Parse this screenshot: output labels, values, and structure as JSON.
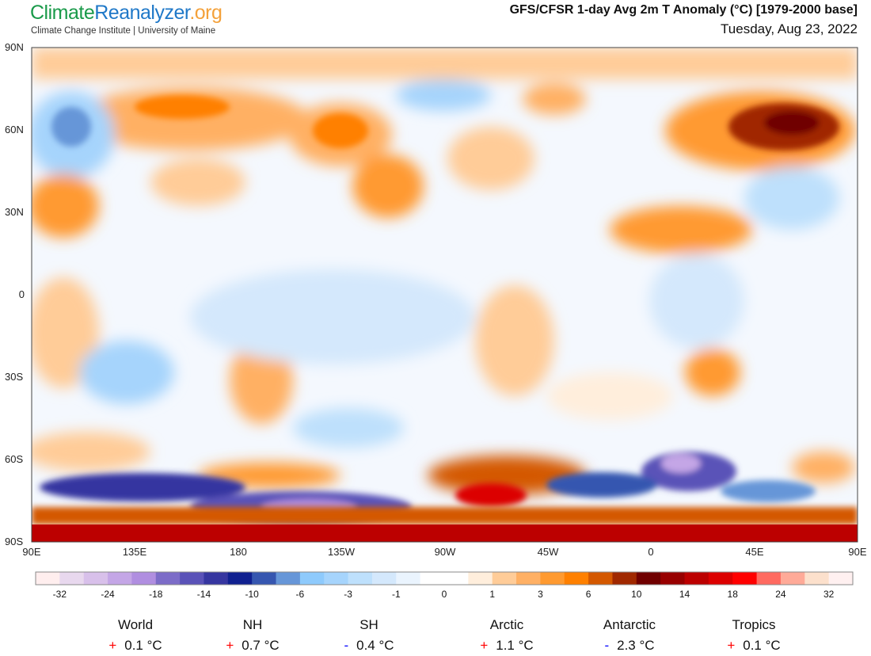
{
  "header": {
    "logo": {
      "part1": "Climate",
      "part2": "Reanalyzer",
      ".org": ".org"
    },
    "subtitle": "Climate Change Institute | University of Maine",
    "title": "GFS/CFSR 1-day Avg 2m T Anomaly (°C) [1979-2000 base]",
    "date": "Tuesday, Aug 23, 2022"
  },
  "map": {
    "lat_labels": [
      "90N",
      "60N",
      "30N",
      "0",
      "30S",
      "60S",
      "90S"
    ],
    "lon_labels": [
      "90E",
      "135E",
      "180",
      "135W",
      "90W",
      "45W",
      "0",
      "45E",
      "90E"
    ]
  },
  "colorbar": {
    "colors": [
      "#ffeeee",
      "#e8d8ee",
      "#d8c0ea",
      "#c4a6e6",
      "#b08ee0",
      "#7c6cc8",
      "#5a52b8",
      "#3636a0",
      "#102090",
      "#3656b0",
      "#6696d8",
      "#8ecafc",
      "#a6d4fc",
      "#bee0fc",
      "#d4e8fc",
      "#eaf4fe",
      "#ffffff",
      "#ffffff",
      "#ffeedc",
      "#ffcc98",
      "#ffb064",
      "#ff9a30",
      "#ff8000",
      "#d45800",
      "#a02800",
      "#700000",
      "#980000",
      "#bc0000",
      "#dc0000",
      "#ff0000",
      "#ff6a60",
      "#ffaa98",
      "#fce0cc",
      "#fff0f0"
    ],
    "labels": [
      "-32",
      "-24",
      "-18",
      "-14",
      "-10",
      "-6",
      "-3",
      "-1",
      "0",
      "1",
      "3",
      "6",
      "10",
      "14",
      "18",
      "24",
      "32"
    ]
  },
  "stats": [
    {
      "name": "World",
      "sign": "+",
      "value": "0.1 °C",
      "color": "#ff0000"
    },
    {
      "name": "NH",
      "sign": "+",
      "value": "0.7 °C",
      "color": "#ff0000"
    },
    {
      "name": "SH",
      "sign": "-",
      "value": "0.4 °C",
      "color": "#0000ff"
    },
    {
      "name": "Arctic",
      "sign": "+",
      "value": "1.1 °C",
      "color": "#ff0000"
    },
    {
      "name": "Antarctic",
      "sign": "-",
      "value": "2.3 °C",
      "color": "#0000ff"
    },
    {
      "name": "Tropics",
      "sign": "+",
      "value": "0.1 °C",
      "color": "#ff0000"
    }
  ]
}
